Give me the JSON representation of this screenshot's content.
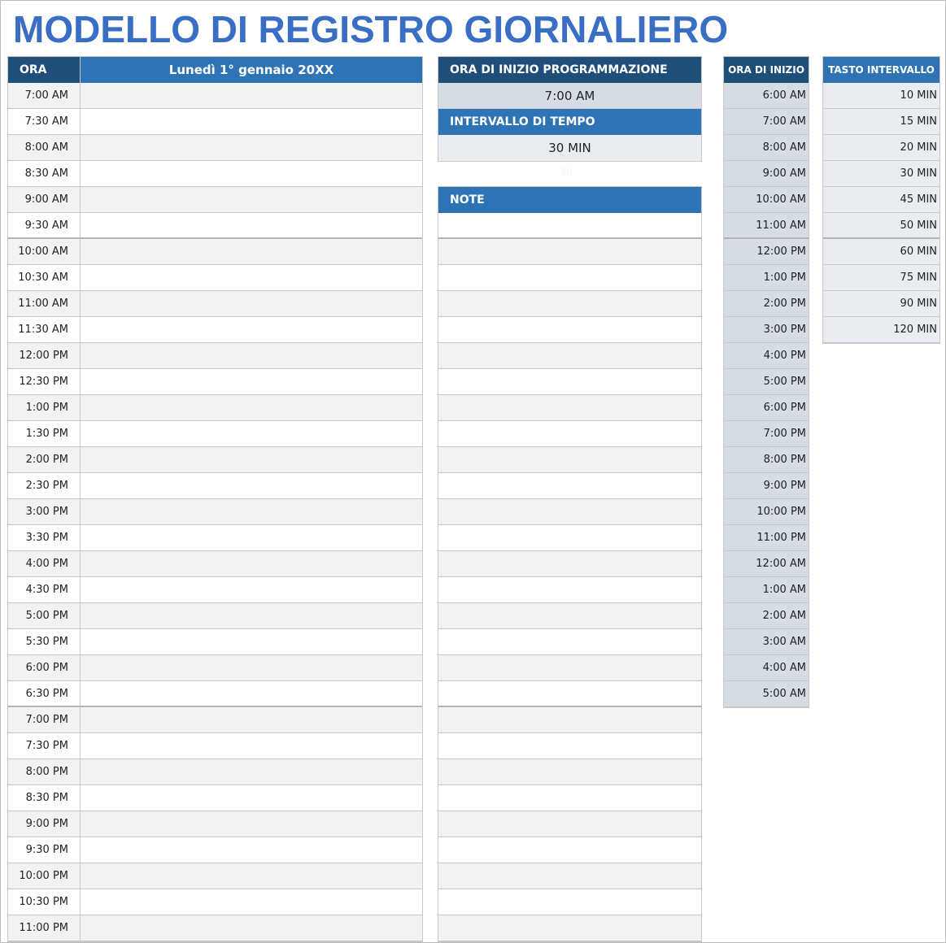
{
  "title": "MODELLO DI REGISTRO GIORNALIERO",
  "log": {
    "time_header": "ORA",
    "date_header": "Lunedì 1° gennaio 20XX",
    "times": [
      "7:00 AM",
      "7:30 AM",
      "8:00 AM",
      "8:30 AM",
      "9:00 AM",
      "9:30 AM",
      "10:00 AM",
      "10:30 AM",
      "11:00 AM",
      "11:30 AM",
      "12:00 PM",
      "12:30 PM",
      "1:00 PM",
      "1:30 PM",
      "2:00 PM",
      "2:30 PM",
      "3:00 PM",
      "3:30 PM",
      "4:00 PM",
      "4:30 PM",
      "5:00 PM",
      "5:30 PM",
      "6:00 PM",
      "6:30 PM",
      "7:00 PM",
      "7:30 PM",
      "8:00 PM",
      "8:30 PM",
      "9:00 PM",
      "9:30 PM",
      "10:00 PM",
      "10:30 PM",
      "11:00 PM"
    ]
  },
  "settings": {
    "start_label": "ORA DI INIZIO PROGRAMMAZIONE",
    "start_value": "7:00 AM",
    "interval_label": "INTERVALLO DI TEMPO",
    "interval_value": "30 MIN",
    "hidden_value": "30"
  },
  "notes": {
    "label": "NOTE",
    "rows": 28
  },
  "start_times": {
    "header": "ORA DI INIZIO",
    "items": [
      "6:00 AM",
      "7:00 AM",
      "8:00 AM",
      "9:00 AM",
      "10:00 AM",
      "11:00 AM",
      "12:00 PM",
      "1:00 PM",
      "2:00 PM",
      "3:00 PM",
      "4:00 PM",
      "5:00 PM",
      "6:00 PM",
      "7:00 PM",
      "8:00 PM",
      "9:00 PM",
      "10:00 PM",
      "11:00 PM",
      "12:00 AM",
      "1:00 AM",
      "2:00 AM",
      "3:00 AM",
      "4:00 AM",
      "5:00 AM"
    ]
  },
  "intervals": {
    "header": "TASTO INTERVALLO",
    "items": [
      "10 MIN",
      "15 MIN",
      "20 MIN",
      "30 MIN",
      "45 MIN",
      "50 MIN",
      "60 MIN",
      "75 MIN",
      "90 MIN",
      "120 MIN"
    ]
  },
  "colors": {
    "title": "#3a6dc4",
    "dark_header": "#1f4e79",
    "blue_header": "#2e74b5"
  }
}
